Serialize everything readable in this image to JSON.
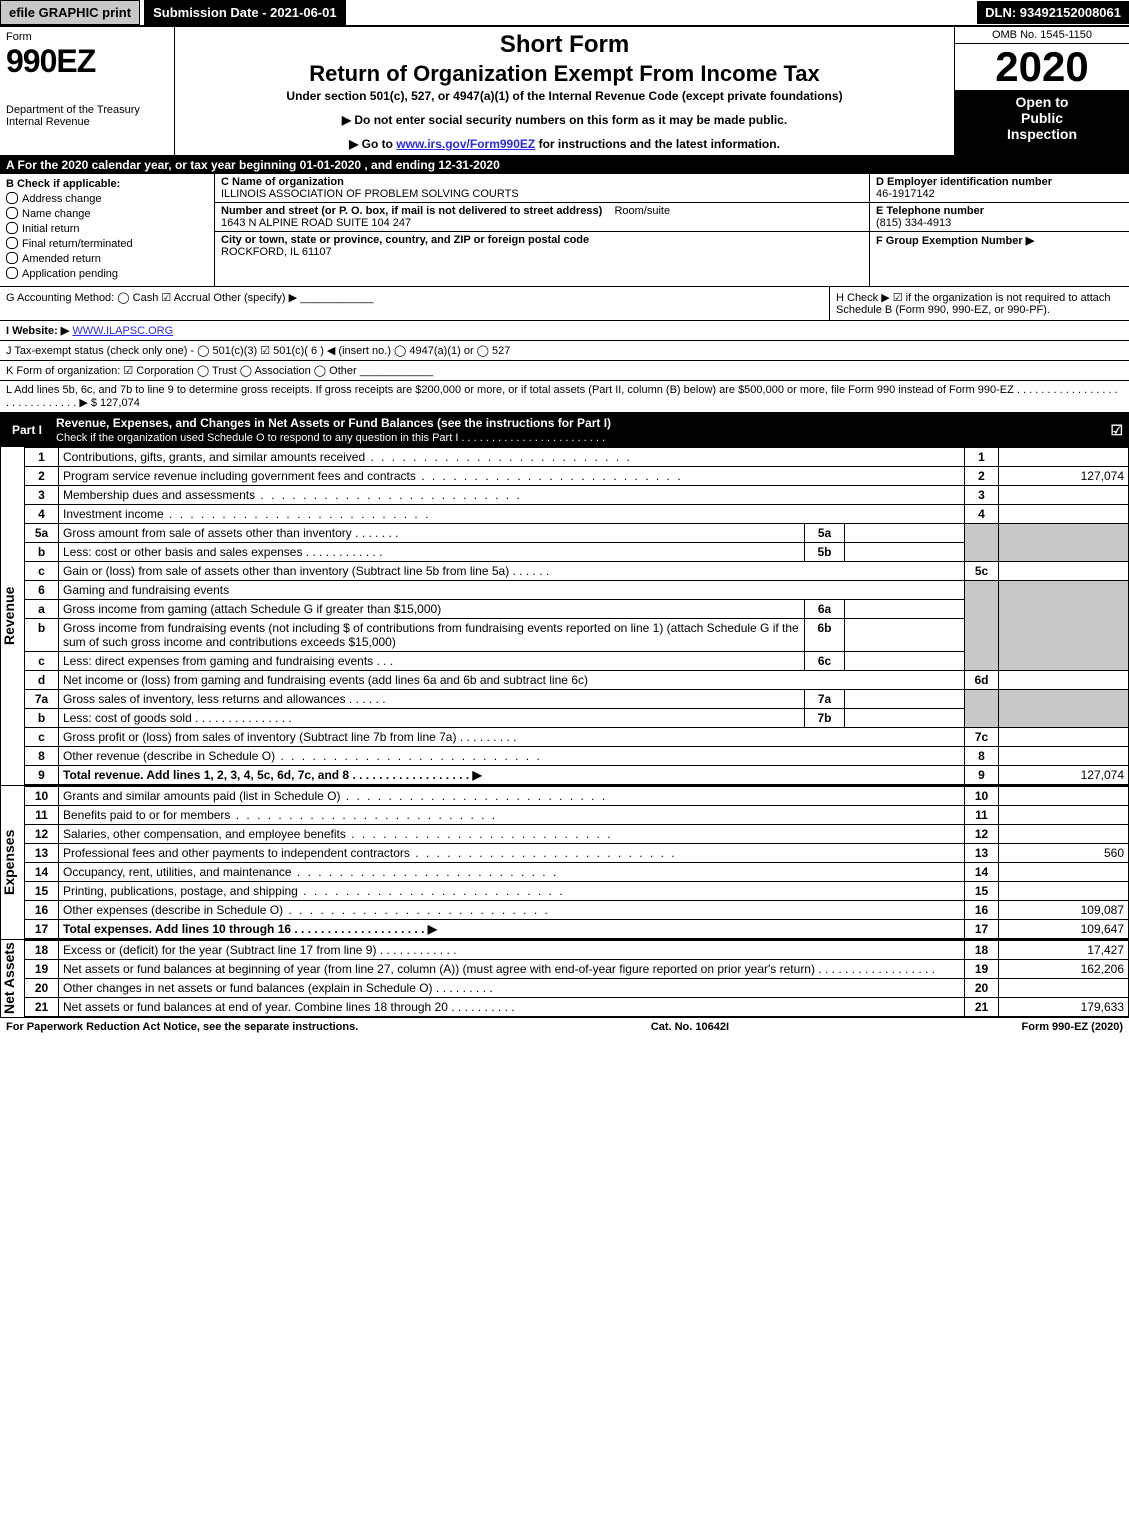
{
  "top_bar": {
    "efile_btn": "efile GRAPHIC print",
    "submission_btn": "Submission Date - 2021-06-01",
    "dln": "DLN: 93492152008061"
  },
  "header": {
    "form_label": "Form",
    "form_number": "990EZ",
    "dept": "Department of the Treasury\nInternal Revenue",
    "short_form": "Short Form",
    "main_title": "Return of Organization Exempt From Income Tax",
    "under": "Under section 501(c), 527, or 4947(a)(1) of the Internal Revenue Code (except private foundations)",
    "note1": "▶ Do not enter social security numbers on this form as it may be made public.",
    "note2_pre": "▶ Go to ",
    "note2_link": "www.irs.gov/Form990EZ",
    "note2_post": " for instructions and the latest information.",
    "omb": "OMB No. 1545-1150",
    "year": "2020",
    "open_public": "Open to\nPublic\nInspection"
  },
  "row_a": "A  For the 2020 calendar year, or tax year beginning 01-01-2020 , and ending 12-31-2020",
  "section_b": {
    "header": "B  Check if applicable:",
    "opts": [
      "Address change",
      "Name change",
      "Initial return",
      "Final return/terminated",
      "Amended return",
      "Application pending"
    ]
  },
  "section_c": {
    "lbl_name": "C Name of organization",
    "org_name": "ILLINOIS ASSOCIATION OF PROBLEM SOLVING COURTS",
    "lbl_addr": "Number and street (or P. O. box, if mail is not delivered to street address)",
    "room": "Room/suite",
    "addr": "1643 N ALPINE ROAD SUITE 104 247",
    "lbl_city": "City or town, state or province, country, and ZIP or foreign postal code",
    "city": "ROCKFORD, IL  61107"
  },
  "section_d": {
    "lbl": "D Employer identification number",
    "val": "46-1917142"
  },
  "section_e": {
    "lbl": "E Telephone number",
    "val": "(815) 334-4913"
  },
  "section_f": {
    "lbl": "F Group Exemption Number  ▶",
    "val": ""
  },
  "section_g": {
    "text": "G Accounting Method:  ◯ Cash  ☑ Accrual   Other (specify) ▶ ____________"
  },
  "section_h": {
    "text": "H  Check ▶ ☑ if the organization is not required to attach Schedule B (Form 990, 990-EZ, or 990-PF)."
  },
  "section_i": {
    "pre": "I Website: ▶",
    "link": "WWW.ILAPSC.ORG"
  },
  "section_j": "J Tax-exempt status (check only one) - ◯ 501(c)(3)  ☑ 501(c)( 6 ) ◀ (insert no.)  ◯ 4947(a)(1) or  ◯ 527",
  "section_k": "K Form of organization:  ☑ Corporation  ◯ Trust  ◯ Association  ◯ Other ____________",
  "section_l": {
    "text": "L Add lines 5b, 6c, and 7b to line 9 to determine gross receipts. If gross receipts are $200,000 or more, or if total assets (Part II, column (B) below) are $500,000 or more, file Form 990 instead of Form 990-EZ  . . . . . . . . . . . . . . . . . . . . . . . . . . . . .   ▶ $",
    "val": "127,074"
  },
  "part1": {
    "tag": "Part I",
    "title": "Revenue, Expenses, and Changes in Net Assets or Fund Balances (see the instructions for Part I)",
    "sub": "Check if the organization used Schedule O to respond to any question in this Part I . . . . . . . . . . . . . . . . . . . . . . . .",
    "checked": "☑"
  },
  "vert_labels": {
    "revenue": "Revenue",
    "expenses": "Expenses",
    "netassets": "Net Assets"
  },
  "lines": {
    "l1": {
      "n": "1",
      "d": "Contributions, gifts, grants, and similar amounts received",
      "r": "1",
      "a": ""
    },
    "l2": {
      "n": "2",
      "d": "Program service revenue including government fees and contracts",
      "r": "2",
      "a": "127,074"
    },
    "l3": {
      "n": "3",
      "d": "Membership dues and assessments",
      "r": "3",
      "a": ""
    },
    "l4": {
      "n": "4",
      "d": "Investment income",
      "r": "4",
      "a": ""
    },
    "l5a": {
      "n": "5a",
      "d": "Gross amount from sale of assets other than inventory",
      "s": "5a"
    },
    "l5b": {
      "n": "b",
      "d": "Less: cost or other basis and sales expenses",
      "s": "5b"
    },
    "l5c": {
      "n": "c",
      "d": "Gain or (loss) from sale of assets other than inventory (Subtract line 5b from line 5a)",
      "r": "5c",
      "a": ""
    },
    "l6": {
      "n": "6",
      "d": "Gaming and fundraising events"
    },
    "l6a": {
      "n": "a",
      "d": "Gross income from gaming (attach Schedule G if greater than $15,000)",
      "s": "6a"
    },
    "l6b": {
      "n": "b",
      "d": "Gross income from fundraising events (not including $            of contributions from fundraising events reported on line 1) (attach Schedule G if the sum of such gross income and contributions exceeds $15,000)",
      "s": "6b"
    },
    "l6c": {
      "n": "c",
      "d": "Less: direct expenses from gaming and fundraising events",
      "s": "6c"
    },
    "l6d": {
      "n": "d",
      "d": "Net income or (loss) from gaming and fundraising events (add lines 6a and 6b and subtract line 6c)",
      "r": "6d",
      "a": ""
    },
    "l7a": {
      "n": "7a",
      "d": "Gross sales of inventory, less returns and allowances",
      "s": "7a"
    },
    "l7b": {
      "n": "b",
      "d": "Less: cost of goods sold",
      "s": "7b"
    },
    "l7c": {
      "n": "c",
      "d": "Gross profit or (loss) from sales of inventory (Subtract line 7b from line 7a)",
      "r": "7c",
      "a": ""
    },
    "l8": {
      "n": "8",
      "d": "Other revenue (describe in Schedule O)",
      "r": "8",
      "a": ""
    },
    "l9": {
      "n": "9",
      "d": "Total revenue. Add lines 1, 2, 3, 4, 5c, 6d, 7c, and 8  . . . . . . . . . . . . . . . . . .  ▶",
      "r": "9",
      "a": "127,074"
    },
    "l10": {
      "n": "10",
      "d": "Grants and similar amounts paid (list in Schedule O)",
      "r": "10",
      "a": ""
    },
    "l11": {
      "n": "11",
      "d": "Benefits paid to or for members",
      "r": "11",
      "a": ""
    },
    "l12": {
      "n": "12",
      "d": "Salaries, other compensation, and employee benefits",
      "r": "12",
      "a": ""
    },
    "l13": {
      "n": "13",
      "d": "Professional fees and other payments to independent contractors",
      "r": "13",
      "a": "560"
    },
    "l14": {
      "n": "14",
      "d": "Occupancy, rent, utilities, and maintenance",
      "r": "14",
      "a": ""
    },
    "l15": {
      "n": "15",
      "d": "Printing, publications, postage, and shipping",
      "r": "15",
      "a": ""
    },
    "l16": {
      "n": "16",
      "d": "Other expenses (describe in Schedule O)",
      "r": "16",
      "a": "109,087"
    },
    "l17": {
      "n": "17",
      "d": "Total expenses. Add lines 10 through 16  . . . . . . . . . . . . . . . . . . . .  ▶",
      "r": "17",
      "a": "109,647"
    },
    "l18": {
      "n": "18",
      "d": "Excess or (deficit) for the year (Subtract line 17 from line 9)",
      "r": "18",
      "a": "17,427"
    },
    "l19": {
      "n": "19",
      "d": "Net assets or fund balances at beginning of year (from line 27, column (A)) (must agree with end-of-year figure reported on prior year's return)",
      "r": "19",
      "a": "162,206"
    },
    "l20": {
      "n": "20",
      "d": "Other changes in net assets or fund balances (explain in Schedule O)",
      "r": "20",
      "a": ""
    },
    "l21": {
      "n": "21",
      "d": "Net assets or fund balances at end of year. Combine lines 18 through 20",
      "r": "21",
      "a": "179,633"
    }
  },
  "footer": {
    "left": "For Paperwork Reduction Act Notice, see the separate instructions.",
    "mid": "Cat. No. 10642I",
    "right": "Form 990-EZ (2020)"
  },
  "colors": {
    "black": "#000000",
    "shade": "#c8c8c8",
    "link": "#2a2aee"
  }
}
